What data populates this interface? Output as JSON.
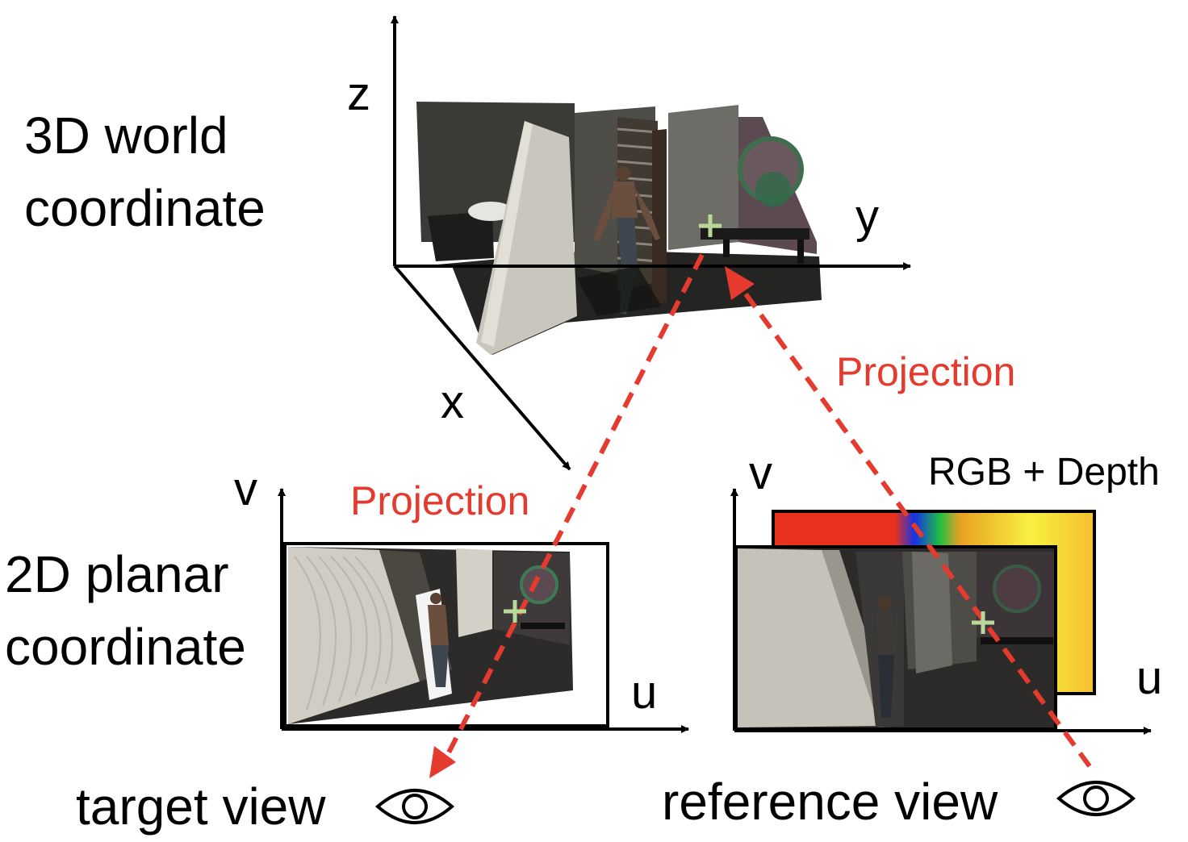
{
  "labels": {
    "world_line1": "3D world",
    "world_line2": "coordinate",
    "planar_line1": "2D planar",
    "planar_line2": "coordinate",
    "axis_x": "x",
    "axis_y": "y",
    "axis_z": "z",
    "axis_v_left": "v",
    "axis_u_left": "u",
    "axis_v_right": "v",
    "axis_u_right": "u",
    "projection_top": "Projection",
    "projection_left": "Projection",
    "rgb_depth": "RGB + Depth",
    "target_view": "target view",
    "reference_view": "reference view"
  },
  "colors": {
    "projection": "#e53a2e",
    "marker": "#b9d99a",
    "axis": "#000000"
  },
  "icons": {
    "target_eye": "eye-icon",
    "reference_eye": "eye-icon"
  }
}
